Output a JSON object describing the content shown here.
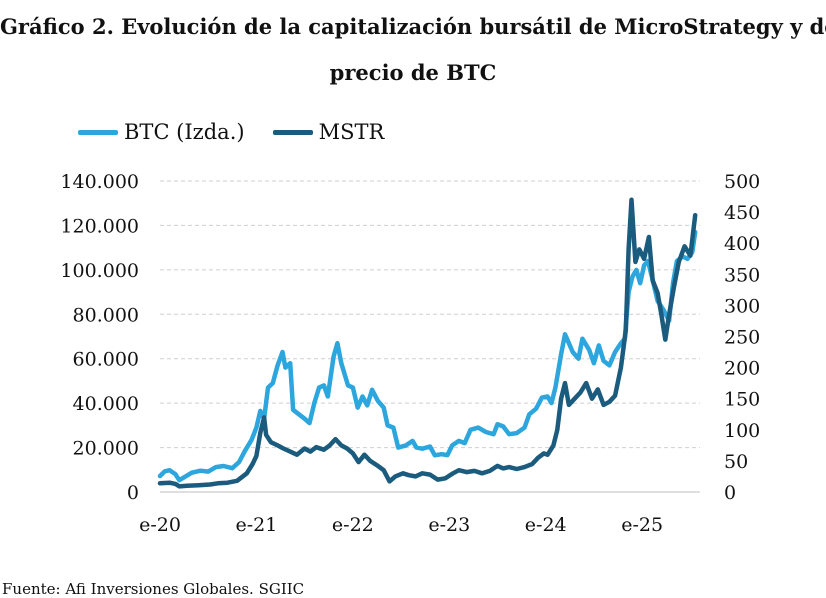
{
  "title": {
    "line1": "Gráfico 2. Evolución de la capitalización bursátil de MicroStrategy y del",
    "line2": "precio de BTC"
  },
  "source": "Fuente: Afi Inversiones Globales. SGIIC",
  "chart_data": {
    "type": "line",
    "title": "Gráfico 2. Evolución de la capitalización bursátil de MicroStrategy y del precio de BTC",
    "legend_position": "top-left",
    "grid": true,
    "x_ticks": [
      "e-20",
      "e-21",
      "e-22",
      "e-23",
      "e-24",
      "e-25"
    ],
    "x_range": [
      2020.0,
      2025.6
    ],
    "y_left": {
      "lim": [
        0,
        140000
      ],
      "ticks": [
        "0",
        "20.000",
        "40.000",
        "60.000",
        "80.000",
        "100.000",
        "120.000",
        "140.000"
      ]
    },
    "y_right": {
      "lim": [
        0,
        500
      ],
      "ticks": [
        "0",
        "50",
        "100",
        "150",
        "200",
        "250",
        "300",
        "350",
        "400",
        "450",
        "500"
      ]
    },
    "series": [
      {
        "name": "BTC (Izda.)",
        "axis": "left",
        "color": "#2ca6dc",
        "points": [
          [
            2020.0,
            7200
          ],
          [
            2020.05,
            9300
          ],
          [
            2020.1,
            9800
          ],
          [
            2020.16,
            8000
          ],
          [
            2020.2,
            5300
          ],
          [
            2020.25,
            6600
          ],
          [
            2020.33,
            8700
          ],
          [
            2020.42,
            9600
          ],
          [
            2020.5,
            9200
          ],
          [
            2020.58,
            11200
          ],
          [
            2020.66,
            11700
          ],
          [
            2020.75,
            10700
          ],
          [
            2020.82,
            13500
          ],
          [
            2020.88,
            18500
          ],
          [
            2020.95,
            23500
          ],
          [
            2021.0,
            29000
          ],
          [
            2021.04,
            36500
          ],
          [
            2021.08,
            33000
          ],
          [
            2021.12,
            47000
          ],
          [
            2021.17,
            49000
          ],
          [
            2021.22,
            57000
          ],
          [
            2021.27,
            63000
          ],
          [
            2021.3,
            56000
          ],
          [
            2021.35,
            58000
          ],
          [
            2021.38,
            37000
          ],
          [
            2021.44,
            35000
          ],
          [
            2021.5,
            33000
          ],
          [
            2021.55,
            31000
          ],
          [
            2021.6,
            40000
          ],
          [
            2021.65,
            47000
          ],
          [
            2021.7,
            48000
          ],
          [
            2021.74,
            43000
          ],
          [
            2021.8,
            61000
          ],
          [
            2021.84,
            67000
          ],
          [
            2021.88,
            58000
          ],
          [
            2021.95,
            48000
          ],
          [
            2022.0,
            47000
          ],
          [
            2022.05,
            38000
          ],
          [
            2022.1,
            43000
          ],
          [
            2022.15,
            39000
          ],
          [
            2022.2,
            46000
          ],
          [
            2022.26,
            41000
          ],
          [
            2022.32,
            38000
          ],
          [
            2022.36,
            30000
          ],
          [
            2022.42,
            29000
          ],
          [
            2022.47,
            20000
          ],
          [
            2022.55,
            21000
          ],
          [
            2022.62,
            23000
          ],
          [
            2022.66,
            20000
          ],
          [
            2022.72,
            19500
          ],
          [
            2022.8,
            20500
          ],
          [
            2022.85,
            16500
          ],
          [
            2022.92,
            17000
          ],
          [
            2022.98,
            16600
          ],
          [
            2023.03,
            21000
          ],
          [
            2023.1,
            23000
          ],
          [
            2023.16,
            22000
          ],
          [
            2023.22,
            28000
          ],
          [
            2023.3,
            29000
          ],
          [
            2023.38,
            27000
          ],
          [
            2023.46,
            26000
          ],
          [
            2023.5,
            30500
          ],
          [
            2023.56,
            29500
          ],
          [
            2023.62,
            26000
          ],
          [
            2023.7,
            26500
          ],
          [
            2023.78,
            29000
          ],
          [
            2023.83,
            35000
          ],
          [
            2023.9,
            37500
          ],
          [
            2023.96,
            42500
          ],
          [
            2024.02,
            43000
          ],
          [
            2024.06,
            40000
          ],
          [
            2024.1,
            47000
          ],
          [
            2024.16,
            62000
          ],
          [
            2024.2,
            71000
          ],
          [
            2024.28,
            63000
          ],
          [
            2024.34,
            60000
          ],
          [
            2024.38,
            69000
          ],
          [
            2024.45,
            64000
          ],
          [
            2024.5,
            58000
          ],
          [
            2024.55,
            66000
          ],
          [
            2024.6,
            59000
          ],
          [
            2024.66,
            57000
          ],
          [
            2024.72,
            63000
          ],
          [
            2024.78,
            67000
          ],
          [
            2024.82,
            69000
          ],
          [
            2024.86,
            90000
          ],
          [
            2024.9,
            97000
          ],
          [
            2024.94,
            100000
          ],
          [
            2024.98,
            94000
          ],
          [
            2025.02,
            102000
          ],
          [
            2025.06,
            104000
          ],
          [
            2025.1,
            97000
          ],
          [
            2025.16,
            86000
          ],
          [
            2025.22,
            82000
          ],
          [
            2025.28,
            77000
          ],
          [
            2025.32,
            94000
          ],
          [
            2025.36,
            104000
          ],
          [
            2025.42,
            106000
          ],
          [
            2025.47,
            105000
          ],
          [
            2025.52,
            108000
          ],
          [
            2025.55,
            117000
          ]
        ]
      },
      {
        "name": "MSTR",
        "axis": "right",
        "color": "#1b5b7e",
        "points": [
          [
            2020.0,
            14
          ],
          [
            2020.1,
            15
          ],
          [
            2020.16,
            13
          ],
          [
            2020.2,
            9
          ],
          [
            2020.28,
            10
          ],
          [
            2020.4,
            11
          ],
          [
            2020.52,
            12
          ],
          [
            2020.6,
            14
          ],
          [
            2020.7,
            15
          ],
          [
            2020.8,
            18
          ],
          [
            2020.9,
            30
          ],
          [
            2020.96,
            45
          ],
          [
            2021.0,
            58
          ],
          [
            2021.04,
            95
          ],
          [
            2021.08,
            120
          ],
          [
            2021.1,
            92
          ],
          [
            2021.15,
            80
          ],
          [
            2021.22,
            75
          ],
          [
            2021.28,
            70
          ],
          [
            2021.35,
            65
          ],
          [
            2021.42,
            60
          ],
          [
            2021.5,
            70
          ],
          [
            2021.56,
            65
          ],
          [
            2021.62,
            72
          ],
          [
            2021.7,
            68
          ],
          [
            2021.76,
            75
          ],
          [
            2021.82,
            85
          ],
          [
            2021.88,
            75
          ],
          [
            2021.94,
            70
          ],
          [
            2022.0,
            62
          ],
          [
            2022.06,
            48
          ],
          [
            2022.12,
            60
          ],
          [
            2022.18,
            50
          ],
          [
            2022.26,
            42
          ],
          [
            2022.32,
            35
          ],
          [
            2022.38,
            17
          ],
          [
            2022.44,
            25
          ],
          [
            2022.52,
            30
          ],
          [
            2022.58,
            27
          ],
          [
            2022.65,
            25
          ],
          [
            2022.72,
            30
          ],
          [
            2022.8,
            28
          ],
          [
            2022.88,
            20
          ],
          [
            2022.96,
            22
          ],
          [
            2023.04,
            30
          ],
          [
            2023.1,
            35
          ],
          [
            2023.18,
            32
          ],
          [
            2023.26,
            34
          ],
          [
            2023.34,
            30
          ],
          [
            2023.42,
            34
          ],
          [
            2023.5,
            42
          ],
          [
            2023.56,
            38
          ],
          [
            2023.62,
            40
          ],
          [
            2023.7,
            37
          ],
          [
            2023.78,
            40
          ],
          [
            2023.86,
            45
          ],
          [
            2023.92,
            55
          ],
          [
            2023.98,
            62
          ],
          [
            2024.02,
            60
          ],
          [
            2024.08,
            75
          ],
          [
            2024.12,
            100
          ],
          [
            2024.16,
            150
          ],
          [
            2024.2,
            175
          ],
          [
            2024.24,
            140
          ],
          [
            2024.3,
            150
          ],
          [
            2024.36,
            160
          ],
          [
            2024.42,
            175
          ],
          [
            2024.48,
            150
          ],
          [
            2024.54,
            165
          ],
          [
            2024.6,
            140
          ],
          [
            2024.66,
            145
          ],
          [
            2024.72,
            155
          ],
          [
            2024.78,
            200
          ],
          [
            2024.83,
            260
          ],
          [
            2024.86,
            390
          ],
          [
            2024.89,
            470
          ],
          [
            2024.93,
            370
          ],
          [
            2024.97,
            390
          ],
          [
            2025.02,
            375
          ],
          [
            2025.07,
            410
          ],
          [
            2025.11,
            340
          ],
          [
            2025.16,
            320
          ],
          [
            2025.2,
            285
          ],
          [
            2025.24,
            245
          ],
          [
            2025.28,
            285
          ],
          [
            2025.33,
            330
          ],
          [
            2025.38,
            370
          ],
          [
            2025.44,
            395
          ],
          [
            2025.5,
            380
          ],
          [
            2025.55,
            445
          ]
        ]
      }
    ]
  }
}
